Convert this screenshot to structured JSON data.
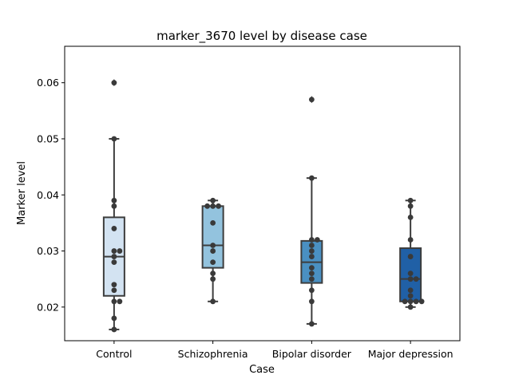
{
  "chart_data": {
    "type": "box",
    "title": "marker_3670 level by disease case",
    "xlabel": "Case",
    "ylabel": "Marker level",
    "ylim": [
      0.014,
      0.0665
    ],
    "yticks": [
      0.02,
      0.03,
      0.04,
      0.05,
      0.06
    ],
    "ytick_labels": [
      "0.02",
      "0.03",
      "0.04",
      "0.05",
      "0.06"
    ],
    "grid": false,
    "legend": "none",
    "categories": [
      "Control",
      "Schizophrenia",
      "Bipolar disorder",
      "Major depression"
    ],
    "colors": [
      "#d3e3f2",
      "#93c3de",
      "#4a90c2",
      "#2060a6"
    ],
    "boxes": [
      {
        "q1": 0.022,
        "median": 0.029,
        "q3": 0.036,
        "whisker_low": 0.016,
        "whisker_high": 0.05,
        "outliers": [
          0.06
        ]
      },
      {
        "q1": 0.027,
        "median": 0.031,
        "q3": 0.038,
        "whisker_low": 0.021,
        "whisker_high": 0.039,
        "outliers": []
      },
      {
        "q1": 0.0243,
        "median": 0.028,
        "q3": 0.0318,
        "whisker_low": 0.017,
        "whisker_high": 0.043,
        "outliers": [
          0.057
        ]
      },
      {
        "q1": 0.021,
        "median": 0.025,
        "q3": 0.0305,
        "whisker_low": 0.02,
        "whisker_high": 0.039,
        "outliers": []
      }
    ],
    "points": [
      [
        0.06,
        0.05,
        0.039,
        0.038,
        0.034,
        0.03,
        0.03,
        0.029,
        0.028,
        0.024,
        0.023,
        0.021,
        0.021,
        0.018,
        0.016
      ],
      [
        0.039,
        0.038,
        0.038,
        0.038,
        0.035,
        0.031,
        0.03,
        0.028,
        0.026,
        0.025,
        0.021
      ],
      [
        0.057,
        0.043,
        0.032,
        0.032,
        0.031,
        0.03,
        0.029,
        0.027,
        0.026,
        0.025,
        0.023,
        0.021,
        0.017
      ],
      [
        0.039,
        0.038,
        0.036,
        0.032,
        0.029,
        0.026,
        0.025,
        0.025,
        0.023,
        0.022,
        0.021,
        0.021,
        0.021,
        0.021,
        0.02
      ]
    ]
  }
}
